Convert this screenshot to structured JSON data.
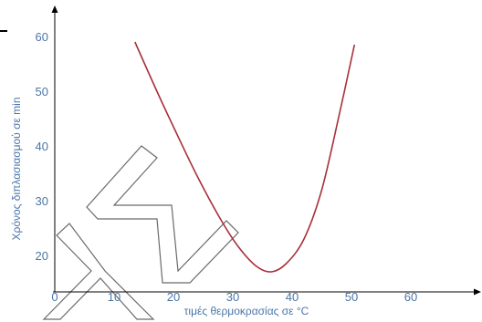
{
  "chart_data": {
    "type": "line",
    "title": "",
    "xlabel": "τιμές θερμοκρασίας σε °C",
    "ylabel": "Χρόνος διπλασιασμού σε min",
    "xlim": [
      0,
      72
    ],
    "ylim": [
      15,
      63
    ],
    "x_ticks": [
      0,
      10,
      20,
      30,
      40,
      50,
      60
    ],
    "y_ticks": [
      20,
      30,
      40,
      50,
      60
    ],
    "grid": false,
    "legend": "none",
    "series": [
      {
        "color": "#a8303a",
        "x": [
          13.5,
          17,
          20,
          24,
          28,
          31,
          34,
          36.5,
          39,
          42,
          45,
          48,
          50.5
        ],
        "y": [
          59,
          50.5,
          43.5,
          34.5,
          26.5,
          21.5,
          18,
          17,
          18.5,
          23,
          32,
          46,
          58.5
        ]
      }
    ]
  },
  "colors": {
    "axis": "#000000",
    "text": "#4a76a8",
    "curve": "#a8303a"
  }
}
